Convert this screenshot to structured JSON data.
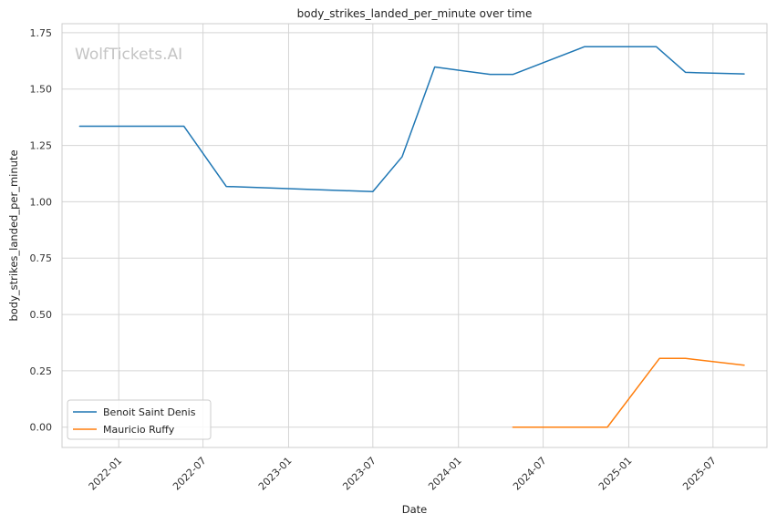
{
  "chart_data": {
    "type": "line",
    "title": "body_strikes_landed_per_minute over time",
    "xlabel": "Date",
    "ylabel": "body_strikes_landed_per_minute",
    "watermark": "WolfTickets.AI",
    "ylim": [
      -0.09,
      1.79
    ],
    "xlim": [
      "2021-09-01",
      "2025-10-25"
    ],
    "yticks": [
      0.0,
      0.25,
      0.5,
      0.75,
      1.0,
      1.25,
      1.5,
      1.75
    ],
    "ytick_labels": [
      "0.00",
      "0.25",
      "0.50",
      "0.75",
      "1.00",
      "1.25",
      "1.50",
      "1.75"
    ],
    "xticks": [
      "2022-01-01",
      "2022-07-01",
      "2023-01-01",
      "2023-07-01",
      "2024-01-01",
      "2024-07-01",
      "2025-01-01",
      "2025-07-01"
    ],
    "xtick_labels": [
      "2022-01",
      "2022-07",
      "2023-01",
      "2023-07",
      "2024-01",
      "2024-07",
      "2025-01",
      "2025-07"
    ],
    "grid": true,
    "legend_position": "lower-left",
    "series": [
      {
        "name": "Benoit Saint Denis",
        "color": "#1f77b4",
        "x": [
          "2021-10-09",
          "2022-05-21",
          "2022-08-20",
          "2023-07-01",
          "2023-09-02",
          "2023-11-11",
          "2024-03-09",
          "2024-04-27",
          "2024-09-28",
          "2025-03-01",
          "2025-05-03",
          "2025-09-06"
        ],
        "y": [
          1.335,
          1.335,
          1.068,
          1.045,
          1.2,
          1.598,
          1.565,
          1.565,
          1.688,
          1.688,
          1.574,
          1.567
        ]
      },
      {
        "name": "Mauricio Ruffy",
        "color": "#ff7f0e",
        "x": [
          "2024-04-27",
          "2024-09-28",
          "2024-11-16",
          "2025-03-08",
          "2025-05-03",
          "2025-09-06"
        ],
        "y": [
          0.0,
          0.0,
          0.0,
          0.305,
          0.305,
          0.275
        ]
      }
    ]
  }
}
